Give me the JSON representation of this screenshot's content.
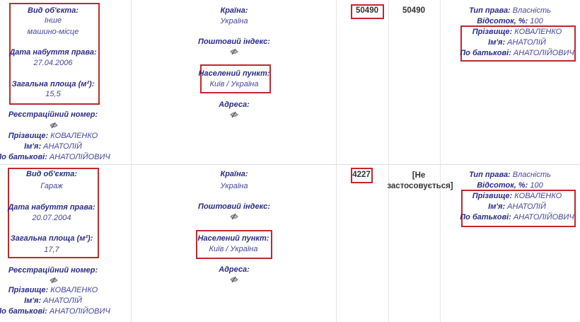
{
  "labels": {
    "object_type": "Вид об'єкта:",
    "acq_date": "Дата набуття права:",
    "area": "Загальна площа (м²):",
    "reg_number": "Реєстраційний номер:",
    "surname": "Прізвище:",
    "name": "Ім'я:",
    "patronymic": "По батькові:",
    "country": "Країна:",
    "postcode": "Поштовий індекс:",
    "locality": "Населений пункт:",
    "address": "Адреса:",
    "right_type": "Тип права:",
    "share": "Відсоток, %:"
  },
  "icons": {
    "hidden": "hidden-data-icon"
  },
  "rows": [
    {
      "object_type": "Інше",
      "object_subtype": "машино-місце",
      "acq_date": "27.04.2006",
      "area": "15,5",
      "surname": "КОВАЛЕНКО",
      "name": "АНАТОЛІЙ",
      "patronymic": "АНАТОЛІЙОВИЧ",
      "country": "Україна",
      "locality": "Київ / Україна",
      "cost_acq": "50490",
      "cost_current": "50490",
      "right_type": "Власність",
      "share": "100",
      "owner_surname": "КОВАЛЕНКО",
      "owner_name": "АНАТОЛІЙ",
      "owner_patronymic": "АНАТОЛІЙОВИЧ"
    },
    {
      "object_type": "Гараж",
      "acq_date": "20.07.2004",
      "area": "17,7",
      "surname": "КОВАЛЕНКО",
      "name": "АНАТОЛІЙ",
      "patronymic": "АНАТОЛІЙОВИЧ",
      "country": "Україна",
      "locality": "Київ / Україна",
      "cost_acq": "4227",
      "cost_current_1": "[Не",
      "cost_current_2": "застосовується]",
      "right_type": "Власність",
      "share": "100",
      "owner_surname": "КОВАЛЕНКО",
      "owner_name": "АНАТОЛІЙ",
      "owner_patronymic": "АНАТОЛІЙОВИЧ"
    }
  ]
}
